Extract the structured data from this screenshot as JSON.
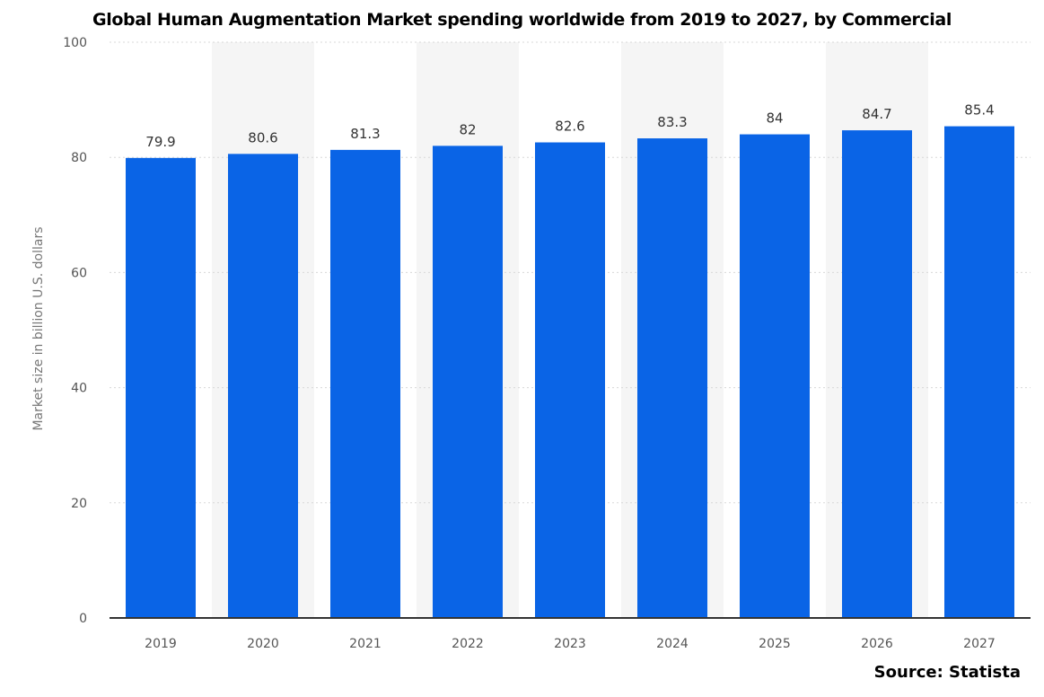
{
  "chart_data": {
    "type": "bar",
    "title": "Global Human Augmentation Market spending worldwide from 2019 to 2027, by Commercial",
    "xlabel": "",
    "ylabel": "Market size in billion U.S. dollars",
    "categories": [
      "2019",
      "2020",
      "2021",
      "2022",
      "2023",
      "2024",
      "2025",
      "2026",
      "2027"
    ],
    "values": [
      79.9,
      80.6,
      81.3,
      82,
      82.6,
      83.3,
      84,
      84.7,
      85.4
    ],
    "ylim": [
      0,
      100
    ],
    "yticks": [
      0,
      20,
      40,
      60,
      80,
      100
    ],
    "grid": true,
    "bar_color": "#0a64e6",
    "alternating_band_color": "#f5f5f5"
  },
  "source": "Source: Statista"
}
